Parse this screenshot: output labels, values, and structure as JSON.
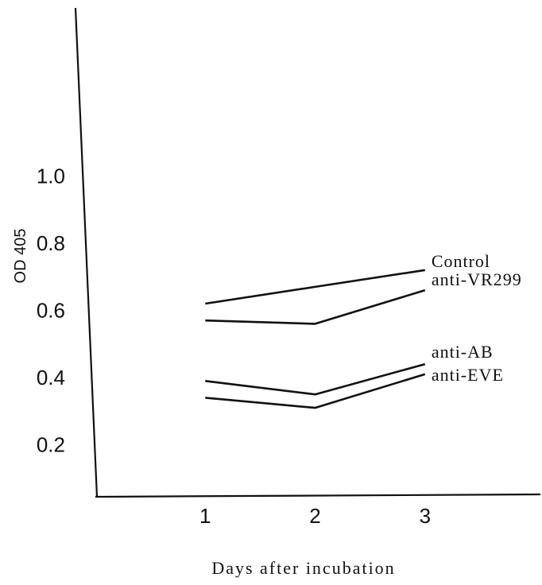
{
  "chart_data": {
    "type": "line",
    "xlabel": "Days after incubation",
    "ylabel": "OD 405",
    "x": [
      1,
      2,
      3
    ],
    "x_ticks": [
      "1",
      "2",
      "3"
    ],
    "y_ticks": [
      "0.2",
      "0.4",
      "0.6",
      "0.8",
      "1.0"
    ],
    "y_tick_values": [
      0.2,
      0.4,
      0.6,
      0.8,
      1.0
    ],
    "xlim": [
      0,
      4.05
    ],
    "ylim": [
      0.05,
      1.5
    ],
    "grid": false,
    "series": [
      {
        "name": "Control",
        "values": [
          0.62,
          0.67,
          0.72
        ]
      },
      {
        "name": "anti-VR299",
        "values": [
          0.57,
          0.56,
          0.66
        ]
      },
      {
        "name": "anti-AB",
        "values": [
          0.39,
          0.35,
          0.44
        ]
      },
      {
        "name": "anti-EVE",
        "values": [
          0.34,
          0.31,
          0.41
        ]
      }
    ]
  }
}
